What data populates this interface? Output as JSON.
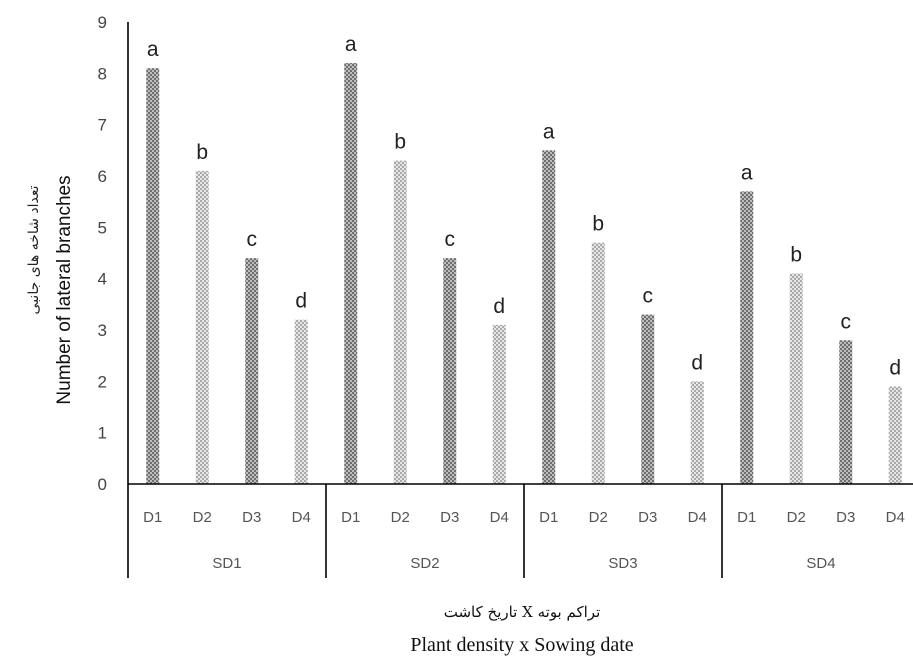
{
  "chart_data": {
    "type": "bar",
    "ylabel": "Number of lateral branches",
    "ylabel_fa": "تعداد شاخه های جانبی",
    "xlabel": "Plant density x Sowing date",
    "xlabel_fa": "تراکم بوته X تاریخ کاشت",
    "ylim": [
      0,
      9
    ],
    "yticks": [
      "0",
      "1",
      "2",
      "3",
      "4",
      "5",
      "6",
      "7",
      "8",
      "9"
    ],
    "grid": false,
    "groups": [
      {
        "name": "SD1",
        "bars": [
          {
            "category": "D1",
            "value": 8.1,
            "label": "a"
          },
          {
            "category": "D2",
            "value": 6.1,
            "label": "b"
          },
          {
            "category": "D3",
            "value": 4.4,
            "label": "c"
          },
          {
            "category": "D4",
            "value": 3.2,
            "label": "d"
          }
        ]
      },
      {
        "name": "SD2",
        "bars": [
          {
            "category": "D1",
            "value": 8.2,
            "label": "a"
          },
          {
            "category": "D2",
            "value": 6.3,
            "label": "b"
          },
          {
            "category": "D3",
            "value": 4.4,
            "label": "c"
          },
          {
            "category": "D4",
            "value": 3.1,
            "label": "d"
          }
        ]
      },
      {
        "name": "SD3",
        "bars": [
          {
            "category": "D1",
            "value": 6.5,
            "label": "a"
          },
          {
            "category": "D2",
            "value": 4.7,
            "label": "b"
          },
          {
            "category": "D3",
            "value": 3.3,
            "label": "c"
          },
          {
            "category": "D4",
            "value": 2.0,
            "label": "d"
          }
        ]
      },
      {
        "name": "SD4",
        "bars": [
          {
            "category": "D1",
            "value": 5.7,
            "label": "a"
          },
          {
            "category": "D2",
            "value": 4.1,
            "label": "b"
          },
          {
            "category": "D3",
            "value": 2.8,
            "label": "c"
          },
          {
            "category": "D4",
            "value": 1.9,
            "label": "d"
          }
        ]
      }
    ],
    "colors": {
      "bar_dark": "#8a8a8a",
      "bar_light": "#c8c8c8",
      "axis": "#000000"
    }
  }
}
